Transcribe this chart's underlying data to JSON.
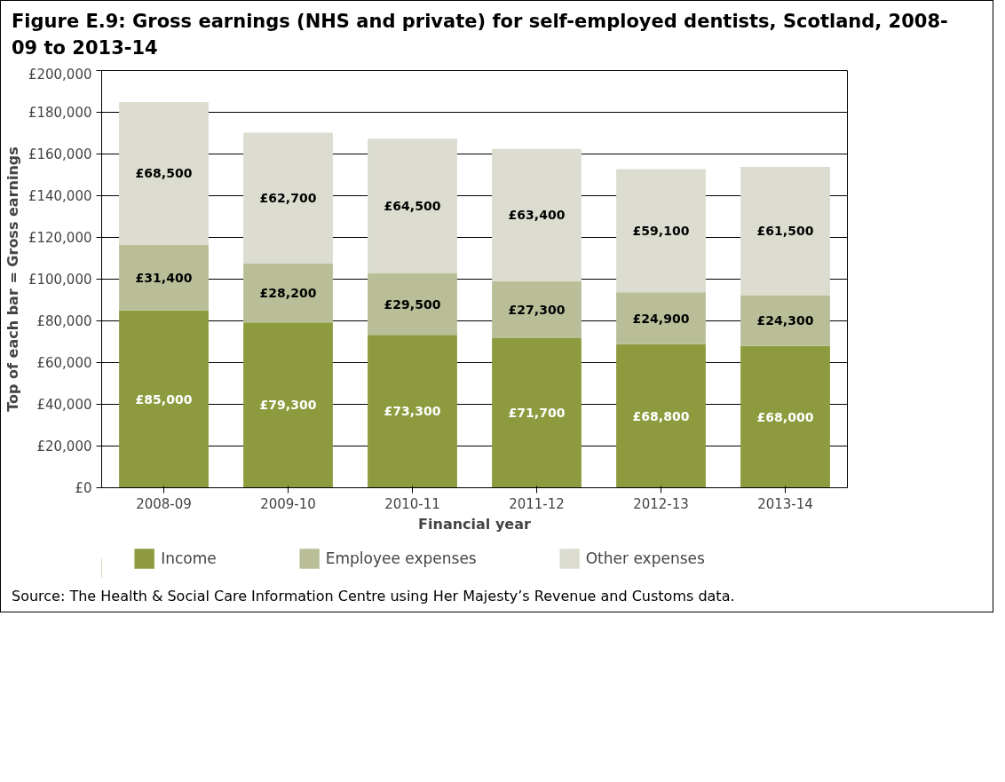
{
  "chart_data": {
    "type": "bar",
    "stacked": true,
    "title": "Figure E.9: Gross earnings (NHS and private) for self-employed dentists, Scotland, 2008-09 to 2013-14",
    "xlabel": "Financial year",
    "ylabel": "Top of each bar = Gross earnings",
    "categories": [
      "2008-09",
      "2009-10",
      "2010-11",
      "2011-12",
      "2012-13",
      "2013-14"
    ],
    "series": [
      {
        "name": "Income",
        "color": "#8d9b3e",
        "values": [
          85000,
          79300,
          73300,
          71700,
          68800,
          68000
        ],
        "value_labels": [
          "£85,000",
          "£79,300",
          "£73,300",
          "£71,700",
          "£68,800",
          "£68,000"
        ]
      },
      {
        "name": "Employee expenses",
        "color": "#b9be98",
        "values": [
          31400,
          28200,
          29500,
          27300,
          24900,
          24300
        ],
        "value_labels": [
          "£31,400",
          "£28,200",
          "£29,500",
          "£27,300",
          "£24,900",
          "£24,300"
        ]
      },
      {
        "name": "Other expenses",
        "color": "#dcddd0",
        "values": [
          68500,
          62700,
          64500,
          63400,
          59100,
          61500
        ],
        "value_labels": [
          "£68,500",
          "£62,700",
          "£64,500",
          "£63,400",
          "£59,100",
          "£61,500"
        ]
      }
    ],
    "ylim": [
      0,
      200000
    ],
    "yticks": [
      {
        "value": 0,
        "label": "£0"
      },
      {
        "value": 20000,
        "label": "£20,000"
      },
      {
        "value": 40000,
        "label": "£40,000"
      },
      {
        "value": 60000,
        "label": "£60,000"
      },
      {
        "value": 80000,
        "label": "£80,000"
      },
      {
        "value": 100000,
        "label": "£100,000"
      },
      {
        "value": 120000,
        "label": "£120,000"
      },
      {
        "value": 140000,
        "label": "£140,000"
      },
      {
        "value": 160000,
        "label": "£160,000"
      },
      {
        "value": 180000,
        "label": "£180,000"
      },
      {
        "value": 200000,
        "label": "£200,000"
      }
    ],
    "grid": "y",
    "legend": "bottom",
    "annotations": [
      "Source: The Health & Social Care Information Centre using Her Majesty’s Revenue and Customs data."
    ]
  }
}
